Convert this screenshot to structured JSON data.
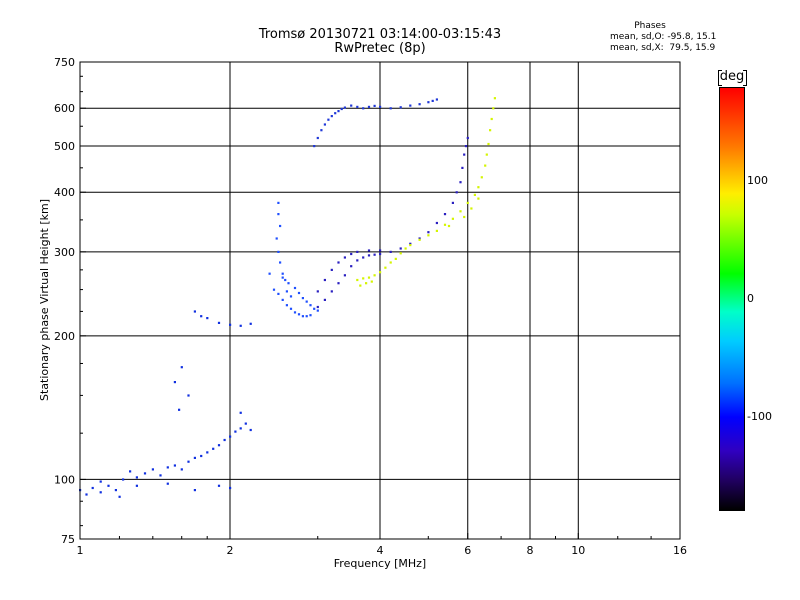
{
  "titles": {
    "line1": "Tromsø 20130721 03:14:00-03:15:43",
    "line2": "RwPretec (8p)"
  },
  "stats": {
    "heading": "Phases",
    "o_line": "mean, sd,O: -95.8, 15.1",
    "x_line": "mean, sd,X:  79.5, 15.9"
  },
  "colorbar": {
    "title": "deg",
    "ticks": [
      {
        "label": "100",
        "value": 100
      },
      {
        "label": "0",
        "value": 0
      },
      {
        "label": "-100",
        "value": -100
      }
    ],
    "range": [
      -180,
      180
    ]
  },
  "chart_data": {
    "type": "scatter",
    "title": "Tromsø 20130721 03:14:00-03:15:43",
    "subtitle": "RwPretec (8p)",
    "xlabel": "Frequency [MHz]",
    "ylabel": "Stationary phase Virtual Height [km]",
    "x_scale": "log",
    "y_scale": "log",
    "xlim": [
      1,
      16
    ],
    "ylim": [
      75,
      750
    ],
    "x_ticks": [
      {
        "label": "1",
        "value": 1
      },
      {
        "label": "2",
        "value": 2
      },
      {
        "label": "4",
        "value": 4
      },
      {
        "label": "6",
        "value": 6
      },
      {
        "label": "8",
        "value": 8
      },
      {
        "label": "10",
        "value": 10
      },
      {
        "label": "16",
        "value": 16
      }
    ],
    "y_ticks": [
      {
        "label": "750",
        "value": 750
      },
      {
        "label": "600",
        "value": 600
      },
      {
        "label": "500",
        "value": 500
      },
      {
        "label": "400",
        "value": 400
      },
      {
        "label": "300",
        "value": 300
      },
      {
        "label": "200",
        "value": 200
      },
      {
        "label": "100",
        "value": 100
      },
      {
        "label": "75",
        "value": 75
      }
    ],
    "grid": true,
    "color_by": "phase [deg]",
    "series": [
      {
        "color": "#1030e0",
        "points": [
          [
            1.0,
            95
          ],
          [
            1.03,
            93
          ],
          [
            1.06,
            96
          ],
          [
            1.1,
            94
          ],
          [
            1.14,
            97
          ],
          [
            1.18,
            95
          ],
          [
            1.22,
            100
          ],
          [
            1.26,
            104
          ],
          [
            1.3,
            101
          ],
          [
            1.35,
            103
          ],
          [
            1.4,
            105
          ],
          [
            1.45,
            102
          ],
          [
            1.5,
            106
          ],
          [
            1.55,
            107
          ],
          [
            1.6,
            105
          ],
          [
            1.65,
            109
          ],
          [
            1.7,
            111
          ],
          [
            1.75,
            112
          ],
          [
            1.8,
            114
          ],
          [
            1.85,
            116
          ],
          [
            1.9,
            118
          ],
          [
            1.95,
            121
          ],
          [
            2.0,
            123
          ],
          [
            2.05,
            126
          ],
          [
            2.1,
            128
          ],
          [
            2.15,
            131
          ],
          [
            2.2,
            127
          ],
          [
            1.1,
            99
          ],
          [
            1.2,
            92
          ],
          [
            1.3,
            97
          ],
          [
            1.5,
            98
          ],
          [
            1.7,
            95
          ],
          [
            1.9,
            97
          ],
          [
            2.0,
            96
          ],
          [
            1.55,
            160
          ],
          [
            1.6,
            172
          ],
          [
            1.65,
            150
          ],
          [
            1.58,
            140
          ],
          [
            2.1,
            138
          ],
          [
            1.7,
            225
          ],
          [
            1.8,
            218
          ],
          [
            1.9,
            213
          ],
          [
            2.0,
            211
          ],
          [
            2.1,
            210
          ],
          [
            2.2,
            212
          ],
          [
            1.75,
            220
          ]
        ]
      },
      {
        "color": "#2050ff",
        "points": [
          [
            2.5,
            380
          ],
          [
            2.5,
            360
          ],
          [
            2.52,
            340
          ],
          [
            2.48,
            320
          ],
          [
            2.5,
            300
          ],
          [
            2.52,
            285
          ],
          [
            2.55,
            270
          ],
          [
            2.58,
            262
          ],
          [
            2.62,
            258
          ],
          [
            2.7,
            252
          ],
          [
            2.75,
            246
          ],
          [
            2.8,
            240
          ],
          [
            2.85,
            236
          ],
          [
            2.9,
            232
          ],
          [
            2.95,
            228
          ],
          [
            3.0,
            226
          ],
          [
            2.45,
            250
          ],
          [
            2.5,
            245
          ],
          [
            2.55,
            238
          ],
          [
            2.6,
            232
          ],
          [
            2.65,
            228
          ],
          [
            2.7,
            224
          ],
          [
            2.75,
            222
          ],
          [
            2.8,
            220
          ],
          [
            2.85,
            220
          ],
          [
            2.9,
            221
          ],
          [
            2.55,
            265
          ],
          [
            2.6,
            248
          ],
          [
            2.65,
            242
          ],
          [
            2.4,
            270
          ]
        ]
      },
      {
        "color": "#2a20c0",
        "points": [
          [
            3.0,
            230
          ],
          [
            3.1,
            238
          ],
          [
            3.2,
            248
          ],
          [
            3.3,
            258
          ],
          [
            3.4,
            268
          ],
          [
            3.5,
            280
          ],
          [
            3.6,
            288
          ],
          [
            3.7,
            292
          ],
          [
            3.8,
            295
          ],
          [
            3.9,
            296
          ],
          [
            4.0,
            297
          ],
          [
            4.2,
            300
          ],
          [
            4.4,
            305
          ],
          [
            4.6,
            312
          ],
          [
            4.8,
            320
          ],
          [
            5.0,
            330
          ],
          [
            5.2,
            345
          ],
          [
            5.4,
            360
          ],
          [
            5.6,
            380
          ],
          [
            5.7,
            400
          ],
          [
            5.8,
            420
          ],
          [
            5.85,
            450
          ],
          [
            5.9,
            480
          ],
          [
            5.95,
            500
          ],
          [
            6.0,
            520
          ],
          [
            3.0,
            248
          ],
          [
            3.1,
            262
          ],
          [
            3.2,
            275
          ],
          [
            3.3,
            285
          ],
          [
            3.4,
            292
          ],
          [
            3.5,
            297
          ],
          [
            3.6,
            300
          ],
          [
            3.8,
            302
          ],
          [
            4.0,
            302
          ]
        ]
      },
      {
        "color": "#2038d8",
        "points": [
          [
            2.95,
            500
          ],
          [
            3.0,
            520
          ],
          [
            3.05,
            540
          ],
          [
            3.1,
            555
          ],
          [
            3.15,
            568
          ],
          [
            3.2,
            578
          ],
          [
            3.25,
            586
          ],
          [
            3.3,
            592
          ],
          [
            3.35,
            598
          ],
          [
            3.4,
            602
          ],
          [
            3.5,
            608
          ],
          [
            3.6,
            604
          ],
          [
            3.7,
            600
          ],
          [
            3.8,
            604
          ],
          [
            3.9,
            607
          ],
          [
            4.0,
            604
          ],
          [
            4.2,
            600
          ],
          [
            4.4,
            603
          ],
          [
            4.6,
            608
          ],
          [
            4.8,
            612
          ],
          [
            5.0,
            618
          ],
          [
            5.1,
            622
          ],
          [
            5.2,
            626
          ]
        ]
      },
      {
        "color": "#d4f500",
        "points": [
          [
            3.6,
            262
          ],
          [
            3.7,
            264
          ],
          [
            3.8,
            265
          ],
          [
            3.9,
            268
          ],
          [
            4.0,
            272
          ],
          [
            4.1,
            278
          ],
          [
            4.2,
            285
          ],
          [
            4.3,
            290
          ],
          [
            4.4,
            298
          ],
          [
            4.5,
            305
          ],
          [
            4.6,
            310
          ],
          [
            4.8,
            318
          ],
          [
            5.0,
            325
          ],
          [
            5.2,
            332
          ],
          [
            5.4,
            342
          ],
          [
            5.6,
            352
          ],
          [
            5.8,
            365
          ],
          [
            6.0,
            380
          ],
          [
            6.2,
            395
          ],
          [
            6.3,
            410
          ],
          [
            6.4,
            430
          ],
          [
            6.5,
            455
          ],
          [
            6.55,
            480
          ],
          [
            6.6,
            505
          ],
          [
            6.65,
            540
          ],
          [
            6.7,
            570
          ],
          [
            6.75,
            600
          ],
          [
            6.8,
            630
          ],
          [
            3.65,
            255
          ],
          [
            3.75,
            258
          ],
          [
            3.85,
            260
          ],
          [
            5.5,
            340
          ],
          [
            5.9,
            355
          ],
          [
            6.1,
            370
          ],
          [
            6.3,
            388
          ]
        ]
      }
    ]
  }
}
